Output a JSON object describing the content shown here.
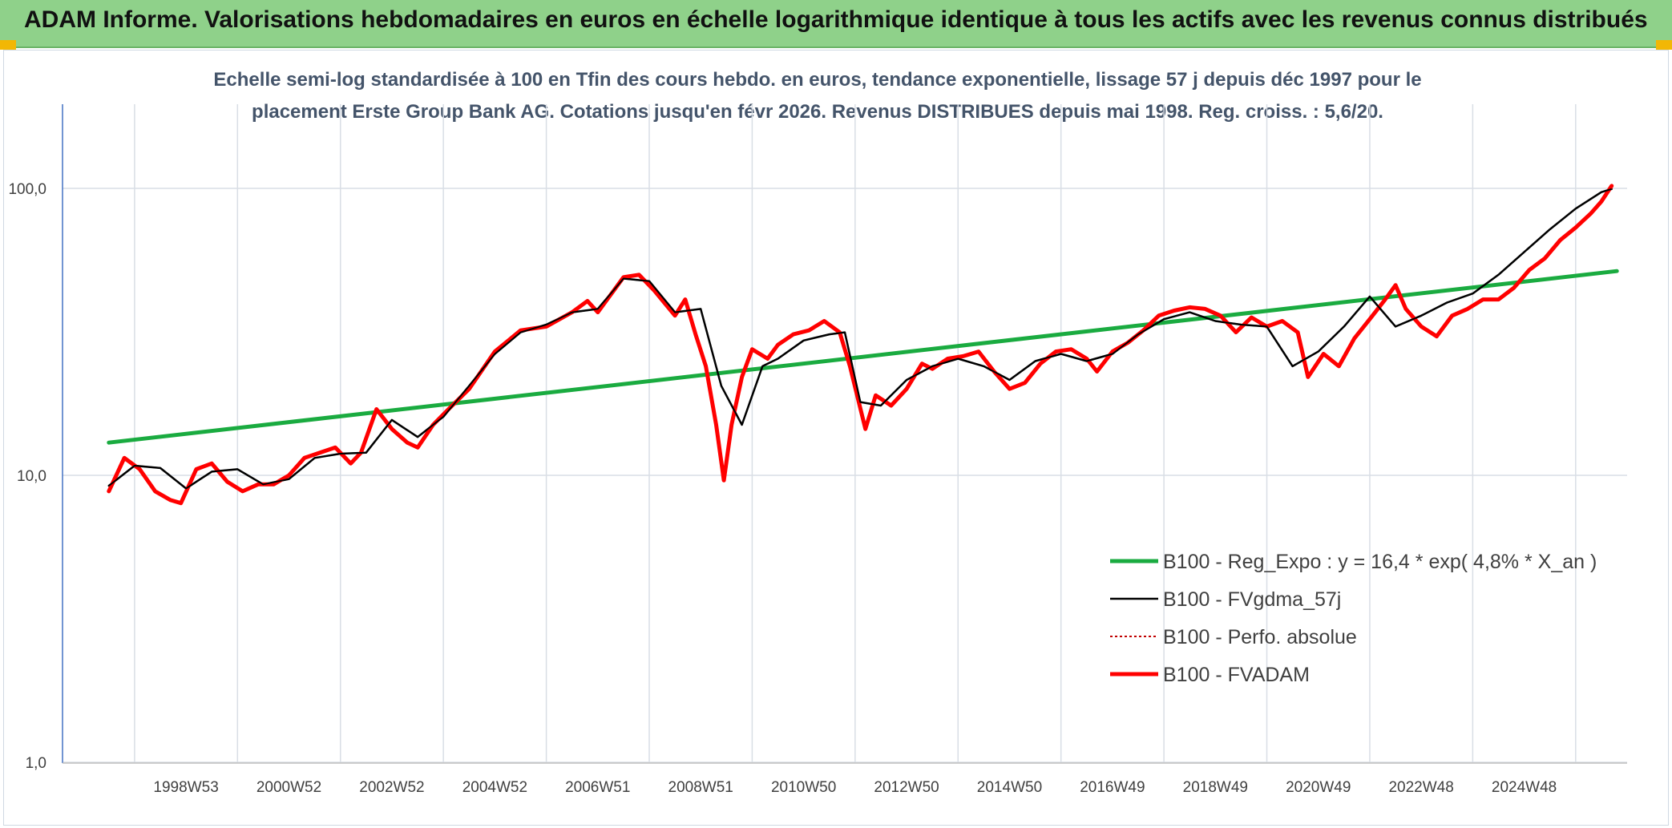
{
  "header": {
    "title": "ADAM Informe. Valorisations hebdomadaires en euros en échelle logarithmique identique à tous les actifs avec les revenus connus distribués"
  },
  "chart_data": {
    "type": "line",
    "title_line1": "Echelle semi-log standardisée à 100 en Tfin des cours hebdo. en euros, tendance exponentielle, lissage 57 j depuis déc 1997 pour le",
    "title_line2": "placement Erste Group Bank AG. Cotations jusqu'en févr 2026. Revenus DISTRIBUES depuis mai 1998. Reg. croiss. : 5,6/20.",
    "y_scale": "log",
    "ylim": [
      1,
      200
    ],
    "xlim": [
      1996.1,
      2026.5
    ],
    "y_ticks": [
      {
        "value": 1,
        "label": "1,0"
      },
      {
        "value": 10,
        "label": "10,0"
      },
      {
        "value": 100,
        "label": "100,0"
      }
    ],
    "x_ticks": [
      {
        "value": 1998.5,
        "label": "1998W53"
      },
      {
        "value": 2000.5,
        "label": "2000W52"
      },
      {
        "value": 2002.5,
        "label": "2002W52"
      },
      {
        "value": 2004.5,
        "label": "2004W52"
      },
      {
        "value": 2006.5,
        "label": "2006W51"
      },
      {
        "value": 2008.5,
        "label": "2008W51"
      },
      {
        "value": 2010.5,
        "label": "2010W50"
      },
      {
        "value": 2012.5,
        "label": "2012W50"
      },
      {
        "value": 2014.5,
        "label": "2014W50"
      },
      {
        "value": 2016.5,
        "label": "2016W49"
      },
      {
        "value": 2018.5,
        "label": "2018W49"
      },
      {
        "value": 2020.5,
        "label": "2020W49"
      },
      {
        "value": 2022.5,
        "label": "2022W48"
      },
      {
        "value": 2024.5,
        "label": "2024W48"
      }
    ],
    "grid": true,
    "legend_position": "bottom-right",
    "series": [
      {
        "name": "B100 - Reg_Expo : y = 16,4 * exp( 4,8% * X_an )",
        "color": "#1aab40",
        "style": "solid-thick",
        "x": [
          1997.0,
          2026.3
        ],
        "y": [
          13.0,
          51.5
        ]
      },
      {
        "name": "B100 - FVgdma_57j",
        "color": "#000000",
        "style": "solid-thin",
        "x": [
          1997.0,
          1997.5,
          1998.0,
          1998.5,
          1999.0,
          1999.5,
          2000.0,
          2000.5,
          2001.0,
          2001.5,
          2002.0,
          2002.5,
          2003.0,
          2003.5,
          2004.0,
          2004.5,
          2005.0,
          2005.5,
          2006.0,
          2006.5,
          2007.0,
          2007.5,
          2008.0,
          2008.5,
          2008.9,
          2009.3,
          2009.7,
          2010.0,
          2010.5,
          2011.0,
          2011.3,
          2011.6,
          2012.0,
          2012.5,
          2013.0,
          2013.5,
          2014.0,
          2014.5,
          2015.0,
          2015.5,
          2016.0,
          2016.5,
          2017.0,
          2017.5,
          2018.0,
          2018.5,
          2019.0,
          2019.5,
          2020.0,
          2020.5,
          2021.0,
          2021.5,
          2022.0,
          2022.5,
          2023.0,
          2023.5,
          2024.0,
          2024.5,
          2025.0,
          2025.5,
          2026.0,
          2026.2
        ],
        "y": [
          9.2,
          10.8,
          10.6,
          9.0,
          10.3,
          10.5,
          9.3,
          9.7,
          11.5,
          11.9,
          12.0,
          15.6,
          13.6,
          16.0,
          20.5,
          26.5,
          31.5,
          33.5,
          37.0,
          38.0,
          48.5,
          47.5,
          37.0,
          38.0,
          20.5,
          15.0,
          24.0,
          25.5,
          29.5,
          31.0,
          31.5,
          18.0,
          17.5,
          21.5,
          24.0,
          25.5,
          24.0,
          21.5,
          25.0,
          26.5,
          25.0,
          26.5,
          31.0,
          35.0,
          37.0,
          34.5,
          33.5,
          33.0,
          24.0,
          27.0,
          33.0,
          42.0,
          33.0,
          36.0,
          40.0,
          43.0,
          50.0,
          60.0,
          72.0,
          85.0,
          97.0,
          99.5
        ]
      },
      {
        "name": "B100 - Perfo. absolue",
        "color": "#c00000",
        "style": "dotted",
        "x": [],
        "y": []
      },
      {
        "name": "B100 - FVADAM",
        "color": "#ff0000",
        "style": "solid-thick",
        "x": [
          1997.0,
          1997.3,
          1997.6,
          1997.9,
          1998.2,
          1998.4,
          1998.7,
          1999.0,
          1999.3,
          1999.6,
          1999.9,
          2000.2,
          2000.5,
          2000.8,
          2001.1,
          2001.4,
          2001.7,
          2001.9,
          2002.2,
          2002.5,
          2002.8,
          2003.0,
          2003.3,
          2003.6,
          2004.0,
          2004.5,
          2005.0,
          2005.5,
          2006.0,
          2006.3,
          2006.5,
          2007.0,
          2007.3,
          2007.6,
          2008.0,
          2008.2,
          2008.4,
          2008.6,
          2008.8,
          2008.95,
          2009.1,
          2009.3,
          2009.5,
          2009.8,
          2010.0,
          2010.3,
          2010.6,
          2010.9,
          2011.2,
          2011.4,
          2011.7,
          2011.9,
          2012.2,
          2012.5,
          2012.8,
          2013.0,
          2013.3,
          2013.6,
          2013.9,
          2014.2,
          2014.5,
          2014.8,
          2015.1,
          2015.4,
          2015.7,
          2016.0,
          2016.2,
          2016.5,
          2016.8,
          2017.1,
          2017.4,
          2017.7,
          2018.0,
          2018.3,
          2018.6,
          2018.9,
          2019.2,
          2019.5,
          2019.8,
          2020.1,
          2020.3,
          2020.6,
          2020.9,
          2021.2,
          2021.5,
          2021.8,
          2022.0,
          2022.2,
          2022.5,
          2022.8,
          2023.1,
          2023.4,
          2023.7,
          2024.0,
          2024.3,
          2024.6,
          2024.9,
          2025.2,
          2025.5,
          2025.8,
          2026.0,
          2026.2
        ],
        "y": [
          8.8,
          11.5,
          10.5,
          8.8,
          8.2,
          8.0,
          10.5,
          11.0,
          9.5,
          8.8,
          9.3,
          9.3,
          10.0,
          11.5,
          12.0,
          12.5,
          11.0,
          12.0,
          17.0,
          14.5,
          13.0,
          12.5,
          15.0,
          17.0,
          20.0,
          27.0,
          32.0,
          33.0,
          37.0,
          40.5,
          37.0,
          49.0,
          50.0,
          44.0,
          36.0,
          41.0,
          31.0,
          24.0,
          15.0,
          9.6,
          15.0,
          22.0,
          27.5,
          25.5,
          28.5,
          31.0,
          32.0,
          34.5,
          31.5,
          24.0,
          14.5,
          19.0,
          17.5,
          20.0,
          24.5,
          23.5,
          25.5,
          26.0,
          27.0,
          23.0,
          20.0,
          21.0,
          24.5,
          27.0,
          27.5,
          25.5,
          23.0,
          27.0,
          29.0,
          32.0,
          36.0,
          37.5,
          38.5,
          38.0,
          36.0,
          31.5,
          35.5,
          33.0,
          34.5,
          31.5,
          22.0,
          26.5,
          24.0,
          30.0,
          35.0,
          41.0,
          46.0,
          38.0,
          33.0,
          30.5,
          36.0,
          38.0,
          41.0,
          41.0,
          45.0,
          52.0,
          57.0,
          66.0,
          73.0,
          82.0,
          90.0,
          102.0
        ]
      }
    ]
  }
}
